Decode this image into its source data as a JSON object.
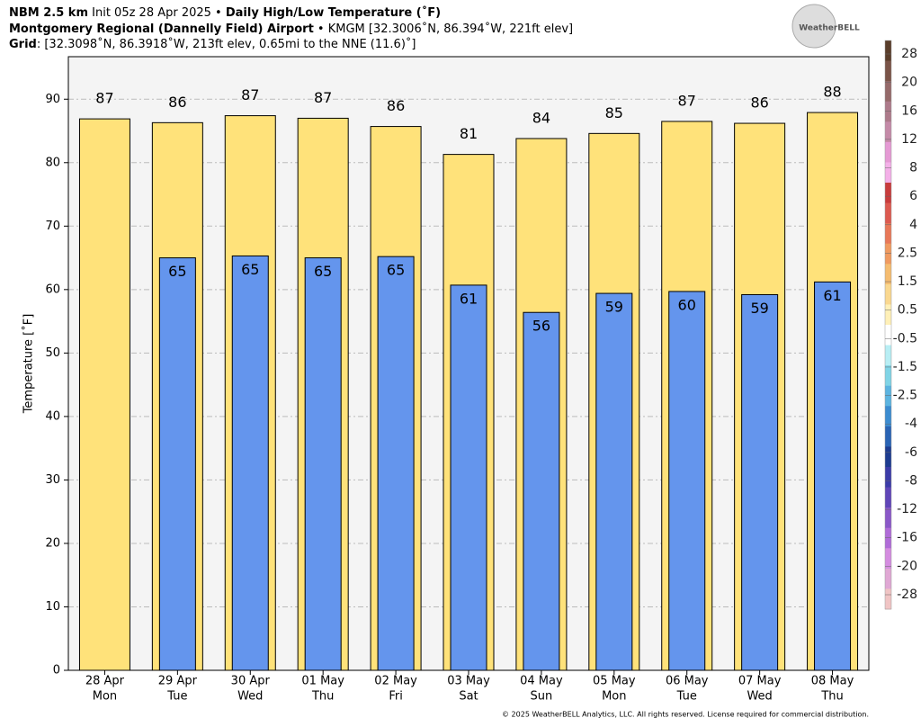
{
  "header": {
    "line1": [
      "NBM 2.5 km",
      " Init 05z 28 Apr 2025 • ",
      "Daily High/Low Temperature (˚F)"
    ],
    "line2": [
      "Montgomery Regional (Dannelly Field) Airport",
      " • KMGM [32.3006˚N, 86.394˚W, 221ft elev]"
    ],
    "line3": [
      "Grid",
      ": [32.3098˚N, 86.3918˚W, 213ft elev, 0.65mi to the NNE (11.6)˚]"
    ],
    "logo": "WeatherBELL"
  },
  "chart_data": {
    "type": "overlap_bar",
    "y_label": "Temperature [˚F]",
    "categories": [
      "28 Apr",
      "29 Apr",
      "30 Apr",
      "01 May",
      "02 May",
      "03 May",
      "04 May",
      "05 May",
      "06 May",
      "07 May",
      "08 May"
    ],
    "day_labels": [
      "Mon",
      "Tue",
      "Wed",
      "Thu",
      "Fri",
      "Sat",
      "Sun",
      "Mon",
      "Tue",
      "Wed",
      "Thu"
    ],
    "series": [
      {
        "color": "#ffe27a",
        "values": [
          86.9,
          86.3,
          87.4,
          87.0,
          85.7,
          81.3,
          83.8,
          84.6,
          86.5,
          86.2,
          87.9
        ],
        "value_labels": [
          "87",
          "86",
          "87",
          "87",
          "86",
          "81",
          "84",
          "85",
          "87",
          "86",
          "88"
        ]
      },
      {
        "color": "#6495ed",
        "values": [
          null,
          65.0,
          65.3,
          65.0,
          65.2,
          60.7,
          56.4,
          59.4,
          59.7,
          59.2,
          61.2
        ],
        "value_labels": [
          null,
          "65",
          "65",
          "65",
          "65",
          "61",
          "56",
          "59",
          "60",
          "59",
          "61"
        ]
      }
    ],
    "ylim": [
      0,
      96.7
    ],
    "yticks": [
      0,
      10,
      20,
      30,
      40,
      50,
      60,
      70,
      80,
      90
    ],
    "grid": true,
    "colorbar": {
      "labels": [
        "28",
        "20",
        "16",
        "12",
        "8",
        "6",
        "4",
        "2.5",
        "1.5",
        "0.5",
        "-0.5",
        "-1.5",
        "-2.5",
        "-4",
        "-6",
        "-8",
        "-12",
        "-16",
        "-20",
        "-28"
      ],
      "colors": [
        "#5a3e2b",
        "#7a5448",
        "#956a6a",
        "#ad7a8a",
        "#c48aa8",
        "#e59ad4",
        "#f4b0e8",
        "#c83c3c",
        "#dc5a50",
        "#e87858",
        "#f09a60",
        "#f5bc70",
        "#fad890",
        "#fff0b8",
        "#ffffff",
        "#b8eef4",
        "#80d4e6",
        "#5cb4e0",
        "#3c8cd0",
        "#2a64b4",
        "#1e3c90",
        "#3c3ca8",
        "#6046b8",
        "#8a58c8",
        "#b06cd8",
        "#d48ce0",
        "#e0a8d4",
        "#f0c4c4"
      ]
    },
    "footer": "© 2025 WeatherBELL Analytics, LLC. All rights reserved. License required for commercial distribution."
  }
}
